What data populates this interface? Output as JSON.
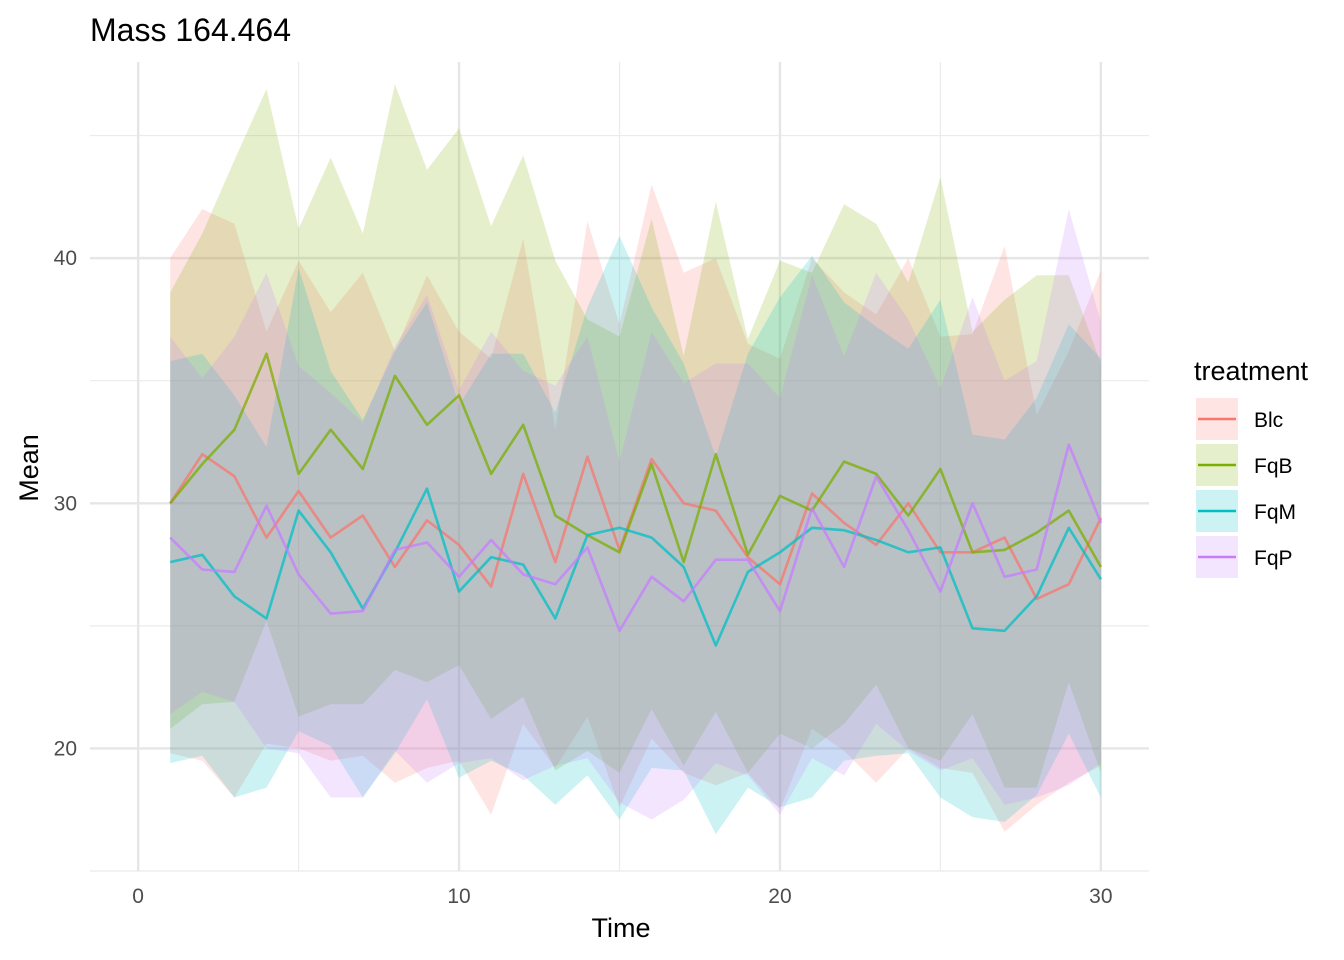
{
  "chart_data": {
    "type": "line",
    "title": "Mass 164.464",
    "xlabel": "Time",
    "ylabel": "Mean",
    "xlim": [
      0,
      30
    ],
    "ylim": [
      15.0,
      48.0
    ],
    "x_ticks": [
      0,
      10,
      20,
      30
    ],
    "y_ticks": [
      20,
      30,
      40
    ],
    "grid": true,
    "legend": {
      "title": "treatment",
      "position": "right"
    },
    "x": [
      1,
      2,
      3,
      4,
      5,
      6,
      7,
      8,
      9,
      10,
      11,
      12,
      13,
      14,
      15,
      16,
      17,
      18,
      19,
      20,
      21,
      22,
      23,
      24,
      25,
      26,
      27,
      28,
      29,
      30
    ],
    "series": [
      {
        "name": "Blc",
        "color": "#F8766D",
        "mean": [
          30.0,
          32.0,
          31.1,
          28.6,
          30.5,
          28.6,
          29.5,
          27.4,
          29.3,
          28.3,
          26.6,
          31.2,
          27.6,
          31.9,
          28.1,
          31.8,
          30.0,
          29.7,
          27.8,
          26.7,
          30.4,
          29.2,
          28.3,
          30.0,
          28.0,
          28.0,
          28.6,
          26.1,
          26.7,
          29.4
        ],
        "upper": [
          40.0,
          42.0,
          41.4,
          37.0,
          39.9,
          37.8,
          39.4,
          36.2,
          39.3,
          37.0,
          35.9,
          40.8,
          33.0,
          41.5,
          37.3,
          43.0,
          39.4,
          40.0,
          36.5,
          35.9,
          40.0,
          38.6,
          37.7,
          40.0,
          36.8,
          36.9,
          40.5,
          33.6,
          36.2,
          39.5
        ],
        "lower": [
          19.8,
          19.5,
          18.0,
          20.2,
          20.0,
          19.5,
          19.7,
          18.6,
          19.2,
          19.5,
          17.3,
          21.0,
          19.2,
          21.3,
          17.6,
          20.4,
          19.0,
          18.5,
          19.0,
          17.5,
          20.8,
          19.9,
          18.6,
          20.0,
          19.2,
          19.0,
          16.6,
          17.7,
          18.6,
          19.3
        ]
      },
      {
        "name": "FqB",
        "color": "#7CAE00",
        "mean": [
          30.0,
          31.6,
          33.0,
          36.1,
          31.2,
          33.0,
          31.4,
          35.2,
          33.2,
          34.4,
          31.2,
          33.2,
          29.5,
          28.7,
          28.0,
          31.6,
          27.6,
          32.0,
          27.9,
          30.3,
          29.7,
          31.7,
          31.2,
          29.5,
          31.4,
          28.0,
          28.1,
          28.8,
          29.7,
          27.4
        ],
        "upper": [
          38.6,
          41.0,
          44.0,
          46.9,
          41.2,
          44.1,
          41.0,
          47.1,
          43.6,
          45.3,
          41.3,
          44.2,
          39.9,
          37.5,
          36.8,
          41.6,
          36.0,
          42.3,
          36.7,
          39.9,
          39.4,
          42.2,
          41.4,
          39.0,
          43.3,
          37.0,
          38.3,
          39.3,
          39.3,
          35.7
        ],
        "lower": [
          20.8,
          21.8,
          21.9,
          25.2,
          21.3,
          21.8,
          21.8,
          23.2,
          22.7,
          23.4,
          21.2,
          22.1,
          19.1,
          19.9,
          19.0,
          21.6,
          19.3,
          21.5,
          19.0,
          20.6,
          20.0,
          21.0,
          22.6,
          20.0,
          19.5,
          21.4,
          18.4,
          18.4,
          22.7,
          19.0
        ]
      },
      {
        "name": "FqM",
        "color": "#00BFC4",
        "mean": [
          27.6,
          27.9,
          26.2,
          25.3,
          29.7,
          28.0,
          25.7,
          28.0,
          30.6,
          26.4,
          27.8,
          27.5,
          25.3,
          28.7,
          29.0,
          28.6,
          27.4,
          24.2,
          27.2,
          28.0,
          29.0,
          28.9,
          28.5,
          28.0,
          28.2,
          24.9,
          24.8,
          26.2,
          29.0,
          26.9
        ],
        "upper": [
          35.8,
          36.1,
          34.4,
          32.3,
          39.6,
          35.4,
          33.4,
          36.2,
          38.2,
          34.0,
          36.1,
          36.1,
          33.7,
          38.0,
          40.9,
          38.0,
          35.7,
          31.9,
          36.1,
          38.4,
          40.1,
          38.2,
          37.2,
          36.3,
          38.3,
          32.8,
          32.6,
          34.3,
          37.3,
          35.9
        ],
        "lower": [
          19.4,
          19.7,
          18.0,
          18.4,
          20.7,
          20.1,
          18.0,
          19.8,
          22.0,
          18.8,
          19.5,
          18.9,
          17.7,
          18.9,
          17.1,
          19.2,
          19.1,
          16.5,
          18.4,
          17.6,
          18.0,
          19.5,
          19.7,
          19.8,
          18.0,
          17.2,
          17.0,
          18.1,
          20.6,
          18.0
        ]
      },
      {
        "name": "FqP",
        "color": "#C77CFF",
        "mean": [
          28.6,
          27.3,
          27.2,
          29.9,
          27.1,
          25.5,
          25.6,
          28.1,
          28.4,
          27.0,
          28.5,
          27.1,
          26.7,
          28.2,
          24.8,
          27.0,
          26.0,
          27.7,
          27.7,
          25.6,
          29.8,
          27.4,
          31.1,
          28.9,
          26.4,
          30.0,
          27.0,
          27.3,
          32.4,
          29.2
        ],
        "upper": [
          36.8,
          35.1,
          36.8,
          39.4,
          35.6,
          34.5,
          33.3,
          36.4,
          38.5,
          34.6,
          37.0,
          35.4,
          34.8,
          36.8,
          31.7,
          37.0,
          34.9,
          35.7,
          35.7,
          34.3,
          39.3,
          36.0,
          39.4,
          37.5,
          34.7,
          38.4,
          35.0,
          35.8,
          42.0,
          37.4
        ],
        "lower": [
          21.4,
          22.3,
          21.9,
          20.0,
          19.8,
          18.0,
          18.0,
          19.9,
          18.6,
          19.4,
          19.6,
          18.7,
          19.3,
          19.6,
          17.8,
          17.1,
          17.9,
          19.4,
          18.9,
          17.3,
          19.6,
          18.9,
          21.0,
          19.9,
          19.1,
          19.6,
          17.7,
          18.0,
          18.5,
          19.4
        ]
      }
    ]
  }
}
